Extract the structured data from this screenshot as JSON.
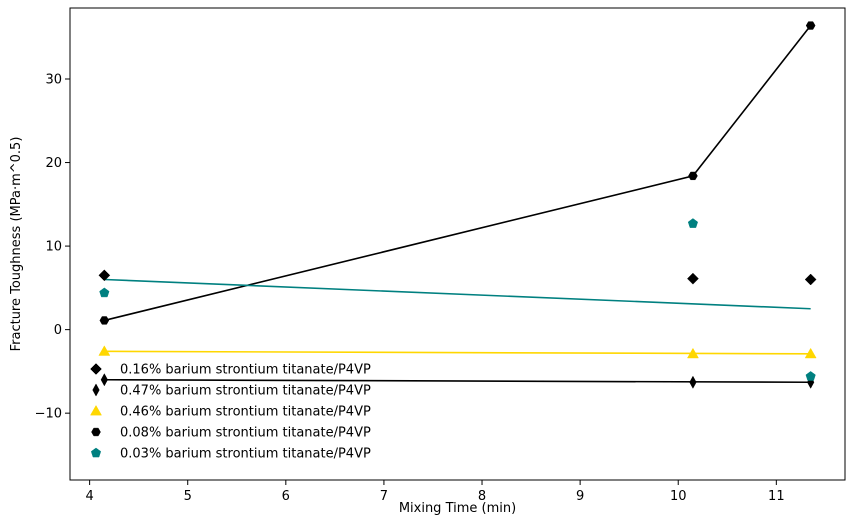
{
  "chart_data": {
    "type": "scatter",
    "xlabel": "Mixing Time (min)",
    "ylabel": "Fracture Toughness (MPa·m^0.5)",
    "xlim": [
      3.8,
      11.7
    ],
    "ylim": [
      -18,
      38.5
    ],
    "xticks": [
      4,
      5,
      6,
      7,
      8,
      9,
      10,
      11
    ],
    "yticks": [
      -10,
      0,
      10,
      20,
      30
    ],
    "ytick_labels": [
      "−10",
      "0",
      "10",
      "20",
      "30"
    ],
    "grid": false,
    "legend_position": "lower-left",
    "series": [
      {
        "name": "0.16% barium strontium titanate/P4VP",
        "color": "#000000",
        "marker": "diamond",
        "points": [
          [
            4.15,
            6.5
          ],
          [
            10.15,
            6.1
          ],
          [
            11.35,
            6.0
          ]
        ],
        "fit": null
      },
      {
        "name": "0.47% barium strontium titanate/P4VP",
        "color": "#000000",
        "marker": "thin-diamond",
        "points": [
          [
            4.15,
            -6.0
          ],
          [
            10.15,
            -6.3
          ],
          [
            11.35,
            -6.3
          ]
        ],
        "fit": [
          [
            4.15,
            -6.0
          ],
          [
            11.35,
            -6.3
          ]
        ]
      },
      {
        "name": "0.46% barium strontium titanate/P4VP",
        "color": "#FFD700",
        "marker": "triangle",
        "points": [
          [
            4.15,
            -2.6
          ],
          [
            10.15,
            -2.9
          ],
          [
            11.35,
            -2.9
          ]
        ],
        "fit": [
          [
            4.15,
            -2.6
          ],
          [
            11.35,
            -2.9
          ]
        ]
      },
      {
        "name": "0.08% barium strontium titanate/P4VP",
        "color": "#000000",
        "marker": "hexagon",
        "points": [
          [
            4.15,
            1.1
          ],
          [
            10.15,
            18.4
          ],
          [
            11.35,
            36.4
          ]
        ],
        "fit": [
          [
            4.15,
            1.1
          ],
          [
            10.15,
            18.4
          ],
          [
            11.35,
            36.4
          ]
        ]
      },
      {
        "name": "0.03% barium strontium titanate/P4VP",
        "color": "#008080",
        "marker": "pentagon",
        "points": [
          [
            4.15,
            4.4
          ],
          [
            10.15,
            12.7
          ],
          [
            11.35,
            -5.6
          ]
        ],
        "fit": [
          [
            4.15,
            6.0
          ],
          [
            11.35,
            2.5
          ]
        ]
      }
    ]
  }
}
